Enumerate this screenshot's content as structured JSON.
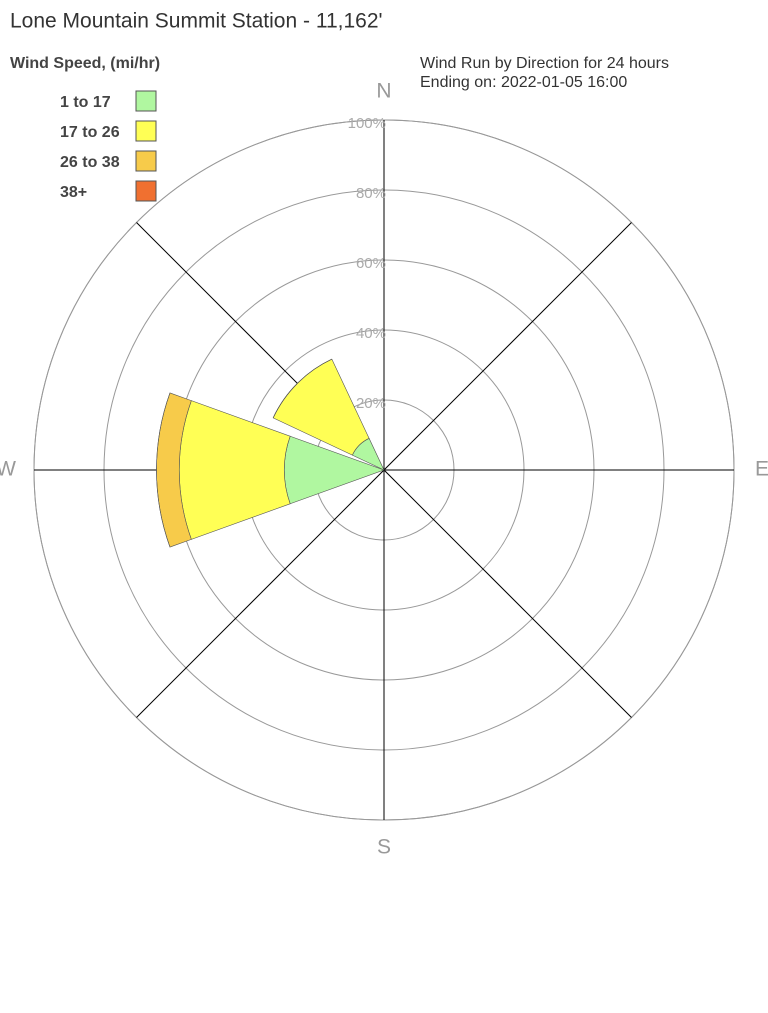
{
  "chart_data": {
    "type": "windrose",
    "title": "Lone Mountain Summit Station - 11,162'",
    "legend_title": "Wind Speed, (mi/hr)",
    "subtitle": [
      "Wind Run by Direction for 24 hours",
      "Ending on: 2022-01-05 16:00"
    ],
    "categories": [
      "N",
      null,
      "E",
      null,
      "S",
      null,
      "W",
      null
    ],
    "series": [
      {
        "name": "1 to 17",
        "color": "#b0f7a0",
        "values": [
          0,
          0,
          0,
          0,
          0,
          0,
          28.5,
          10
        ]
      },
      {
        "name": "17 to 26",
        "color": "#ffff55",
        "values": [
          0,
          0,
          0,
          0,
          0,
          0,
          30,
          25
        ]
      },
      {
        "name": "26 to 38",
        "color": "#f7cb4a",
        "values": [
          0,
          0,
          0,
          0,
          0,
          0,
          6.5,
          0
        ]
      },
      {
        "name": "38+",
        "color": "#f07030",
        "values": [
          0,
          0,
          0,
          0,
          0,
          0,
          0,
          0
        ]
      }
    ],
    "rlim": [
      0,
      100
    ],
    "rticks": [
      {
        "value": 20,
        "label": "20%"
      },
      {
        "value": 40,
        "label": "40%"
      },
      {
        "value": 60,
        "label": "60%"
      },
      {
        "value": 80,
        "label": "80%"
      },
      {
        "value": 100,
        "label": "100%"
      }
    ],
    "grid": true
  }
}
